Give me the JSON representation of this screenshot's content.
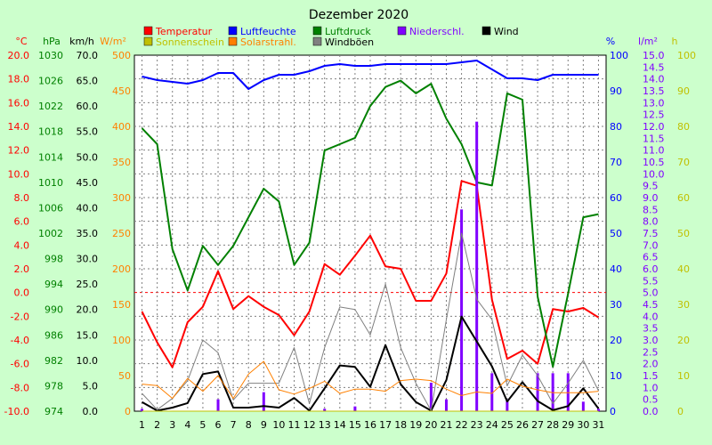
{
  "chart_data": {
    "type": "line",
    "title": "Dezember 2020",
    "categories": [
      "1",
      "2",
      "3",
      "4",
      "5",
      "6",
      "7",
      "8",
      "9",
      "10",
      "11",
      "12",
      "13",
      "14",
      "15",
      "16",
      "17",
      "18",
      "19",
      "20",
      "21",
      "22",
      "23",
      "24",
      "25",
      "26",
      "27",
      "28",
      "29",
      "30",
      "31"
    ],
    "grid": true,
    "legend_position": "top",
    "axes": {
      "temp": {
        "label": "°C",
        "color": "#ff0000",
        "min": -10,
        "max": 20,
        "step": 2,
        "decimals": 1,
        "side": "left"
      },
      "hpa": {
        "label": "hPa",
        "color": "#008000",
        "min": 974,
        "max": 1030,
        "step": 4,
        "decimals": 0,
        "side": "left"
      },
      "kmh": {
        "label": "km/h",
        "color": "#000000",
        "min": 0,
        "max": 70,
        "step": 5,
        "decimals": 1,
        "side": "left"
      },
      "wm2": {
        "label": "W/m²",
        "color": "#ff8000",
        "min": 0,
        "max": 500,
        "step": 50,
        "decimals": 0,
        "side": "left"
      },
      "pct": {
        "label": "%",
        "color": "#0000ff",
        "min": 0,
        "max": 100,
        "step": 10,
        "decimals": 0,
        "side": "right"
      },
      "lm2": {
        "label": "l/m²",
        "color": "#8000ff",
        "min": 0,
        "max": 15,
        "step": 0.5,
        "decimals": 1,
        "side": "right"
      },
      "h": {
        "label": "h",
        "color": "#c0c000",
        "min": 0,
        "max": 100,
        "step": 10,
        "decimals": 0,
        "side": "right"
      }
    },
    "legend": [
      {
        "name": "Temperatur",
        "color": "#ff0000",
        "text_color": "#ff0000"
      },
      {
        "name": "Luftfeuchte",
        "color": "#0000ff",
        "text_color": "#0000ff"
      },
      {
        "name": "Luftdruck",
        "color": "#008000",
        "text_color": "#008000"
      },
      {
        "name": "Niederschl.",
        "color": "#8000ff",
        "text_color": "#8000ff"
      },
      {
        "name": "Wind",
        "color": "#000000",
        "text_color": "#000000"
      },
      {
        "name": "Sonnenschein",
        "color": "#c0c000",
        "text_color": "#c0c000"
      },
      {
        "name": "Solarstrahl.",
        "color": "#ff8000",
        "text_color": "#ff8000"
      },
      {
        "name": "Windböen",
        "color": "#808080",
        "text_color": "#000000"
      }
    ],
    "series": [
      {
        "name": "Temperatur",
        "axis": "temp",
        "kind": "line",
        "color": "#ff0000",
        "width": 2,
        "values": [
          -1.6,
          -4.2,
          -6.3,
          -2.5,
          -1.2,
          1.8,
          -1.4,
          -0.3,
          -1.2,
          -1.9,
          -3.6,
          -1.6,
          2.4,
          1.5,
          3.1,
          4.8,
          2.2,
          2.0,
          -0.7,
          -0.7,
          1.6,
          9.4,
          9.0,
          -0.6,
          -5.6,
          -4.9,
          -6.0,
          -1.4,
          -1.6,
          -1.3,
          -2.1
        ]
      },
      {
        "name": "Luftfeuchte",
        "axis": "pct",
        "kind": "line",
        "color": "#0000ff",
        "width": 2,
        "values": [
          94,
          93,
          92.5,
          92,
          93,
          95,
          95,
          90.5,
          93,
          94.5,
          94.5,
          95.5,
          97,
          97.5,
          97,
          97,
          97.5,
          97.5,
          97.5,
          97.5,
          97.5,
          98,
          98.5,
          96,
          93.5,
          93.5,
          93,
          94.5,
          94.5,
          94.5,
          94.5
        ]
      },
      {
        "name": "Luftdruck",
        "axis": "hpa",
        "kind": "line",
        "color": "#008000",
        "width": 2,
        "values": [
          1018.5,
          1016,
          999.5,
          993,
          1000,
          997,
          1000,
          1004.5,
          1009,
          1007,
          997,
          1000.5,
          1015,
          1016,
          1017,
          1022,
          1025,
          1026,
          1024,
          1025.5,
          1020,
          1016,
          1010,
          1009.5,
          1024,
          1023,
          992,
          981,
          992.5,
          1004.5,
          1005
        ]
      },
      {
        "name": "Niederschl.",
        "axis": "lm2",
        "kind": "bar",
        "color": "#8000ff",
        "values": [
          0.1,
          0,
          0,
          0,
          0,
          0.5,
          0,
          0,
          0.8,
          0,
          0,
          0,
          0.1,
          0,
          0.2,
          0,
          0,
          0,
          0,
          1.2,
          0.5,
          8.5,
          12.2,
          1.6,
          0.5,
          0,
          1.6,
          1.6,
          1.6,
          0.4,
          0.1
        ]
      },
      {
        "name": "Wind",
        "axis": "kmh",
        "kind": "line",
        "color": "#000000",
        "width": 2,
        "values": [
          1.8,
          0.1,
          0.7,
          1.6,
          7.3,
          7.8,
          0.7,
          0.7,
          1.0,
          0.7,
          2.6,
          0.1,
          4.5,
          9.0,
          8.7,
          4.8,
          13.0,
          5.3,
          1.8,
          0.1,
          6.1,
          18.6,
          13.7,
          8.8,
          1.9,
          5.7,
          2.0,
          0.2,
          1.0,
          4.5,
          0.5
        ]
      },
      {
        "name": "Windböen",
        "axis": "kmh",
        "kind": "line",
        "color": "#808080",
        "width": 1,
        "values": [
          3.5,
          0.3,
          2.5,
          6.0,
          14.0,
          11.5,
          2.2,
          5.5,
          5.5,
          5.5,
          12.5,
          1.5,
          12.5,
          20.5,
          20.0,
          15.0,
          25.0,
          12.5,
          5.5,
          0.1,
          18.0,
          35.0,
          22.0,
          18.0,
          5.0,
          11.0,
          7.0,
          1.5,
          5.5,
          10.0,
          4.0
        ]
      },
      {
        "name": "Solarstrahl.",
        "axis": "wm2",
        "kind": "line",
        "color": "#ff8000",
        "width": 1,
        "values": [
          38,
          36,
          18,
          46,
          28,
          50,
          18,
          52,
          70,
          30,
          24,
          32,
          42,
          25,
          31,
          31,
          28,
          43,
          45,
          43,
          31,
          22,
          27,
          25,
          45,
          35,
          30,
          26,
          26,
          26,
          28
        ]
      },
      {
        "name": "Sonnenschein",
        "axis": "h",
        "kind": "line",
        "color": "#c0c000",
        "width": 1,
        "values": [
          0,
          0,
          0,
          0,
          0,
          0,
          0,
          0,
          0,
          0,
          0,
          0,
          0,
          0,
          0,
          0,
          0,
          0,
          0,
          0,
          0,
          0,
          0,
          0,
          0,
          0,
          0,
          0,
          0,
          0,
          0
        ]
      }
    ]
  }
}
